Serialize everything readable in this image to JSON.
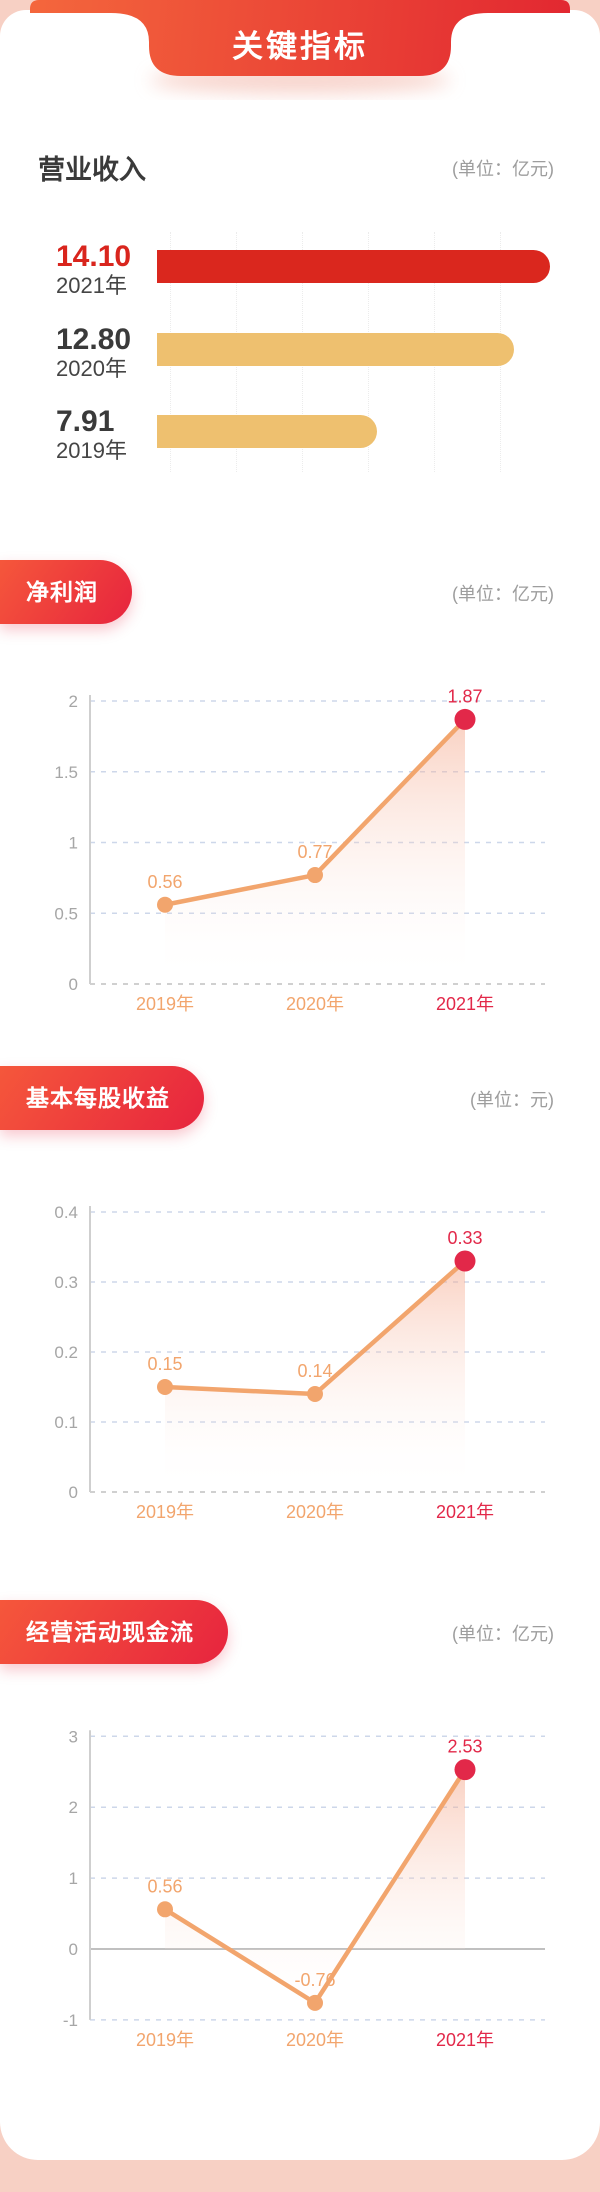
{
  "banner": {
    "title": "关键指标"
  },
  "palette": {
    "page_bg": "#f7d0c4",
    "card_bg": "#ffffff",
    "banner_gradient_start": "#f56a3d",
    "banner_gradient_end": "#e12430",
    "badge_gradient_start": "#f5573b",
    "badge_gradient_end": "#e7243e",
    "bar_red": "#da271e",
    "bar_gold": "#eec06f",
    "line_orange": "#f2a56d",
    "highlight_red": "#e22849",
    "value_red": "#d9251d",
    "text_dark": "#3a3a3a",
    "unit_gray": "#9d9d9d",
    "tick_gray": "#a6a6a6",
    "grid_dash_blue": "#cdd7ea",
    "zero_line_gray": "#c0c0c0",
    "area_fill_top": "#f4a284"
  },
  "sections": [
    {
      "title": "营业收入",
      "unit": "(单位：亿元)"
    },
    {
      "title": "净利润",
      "unit": "(单位：亿元)"
    },
    {
      "title": "基本每股收益",
      "unit": "(单位：元)"
    },
    {
      "title": "经营活动现金流",
      "unit": "(单位：亿元)"
    }
  ],
  "chart_data": [
    {
      "type": "bar",
      "orientation": "horizontal",
      "title": "营业收入",
      "unit": "亿元",
      "categories": [
        "2021年",
        "2020年",
        "2019年"
      ],
      "values": [
        14.1,
        12.8,
        7.91
      ],
      "value_labels": [
        "14.10",
        "12.80",
        "7.91"
      ],
      "bar_colors": [
        "#da271e",
        "#eec06f",
        "#eec06f"
      ],
      "value_colors": [
        "#d9251d",
        "#3a3a3a",
        "#3a3a3a"
      ],
      "xlim": [
        0,
        14.1
      ],
      "grid": "vertical-dotted"
    },
    {
      "type": "line",
      "title": "净利润",
      "unit": "亿元",
      "x": [
        "2019年",
        "2020年",
        "2021年"
      ],
      "values": [
        0.56,
        0.77,
        1.87
      ],
      "value_labels": [
        "0.56",
        "0.77",
        "1.87"
      ],
      "yticks": [
        {
          "label": "2",
          "value": 2
        },
        {
          "label": "1.5",
          "value": 1.5
        },
        {
          "label": "1",
          "value": 1
        },
        {
          "label": "0.5",
          "value": 0.5
        },
        {
          "label": "0",
          "value": 0
        }
      ],
      "ylim": [
        0,
        2
      ],
      "highlight_index": 2,
      "grid": "horizontal-dashed",
      "legend": "none"
    },
    {
      "type": "line",
      "title": "基本每股收益",
      "unit": "元",
      "x": [
        "2019年",
        "2020年",
        "2021年"
      ],
      "values": [
        0.15,
        0.14,
        0.33
      ],
      "value_labels": [
        "0.15",
        "0.14",
        "0.33"
      ],
      "yticks": [
        {
          "label": "0.4",
          "value": 0.4
        },
        {
          "label": "0.3",
          "value": 0.3
        },
        {
          "label": "0.2",
          "value": 0.2
        },
        {
          "label": "0.1",
          "value": 0.1
        },
        {
          "label": "0",
          "value": 0
        }
      ],
      "ylim": [
        0,
        0.4
      ],
      "highlight_index": 2,
      "grid": "horizontal-dashed",
      "legend": "none"
    },
    {
      "type": "line",
      "title": "经营活动现金流",
      "unit": "亿元",
      "x": [
        "2019年",
        "2020年",
        "2021年"
      ],
      "values": [
        0.56,
        -0.76,
        2.53
      ],
      "value_labels": [
        "0.56",
        "-0.76",
        "2.53"
      ],
      "yticks": [
        {
          "label": "3",
          "value": 3
        },
        {
          "label": "2",
          "value": 2
        },
        {
          "label": "1",
          "value": 1
        },
        {
          "label": "0",
          "value": 0
        },
        {
          "label": "-1",
          "value": -1
        }
      ],
      "ylim": [
        -1,
        3
      ],
      "highlight_index": 2,
      "grid": "horizontal-dashed",
      "legend": "none"
    }
  ]
}
